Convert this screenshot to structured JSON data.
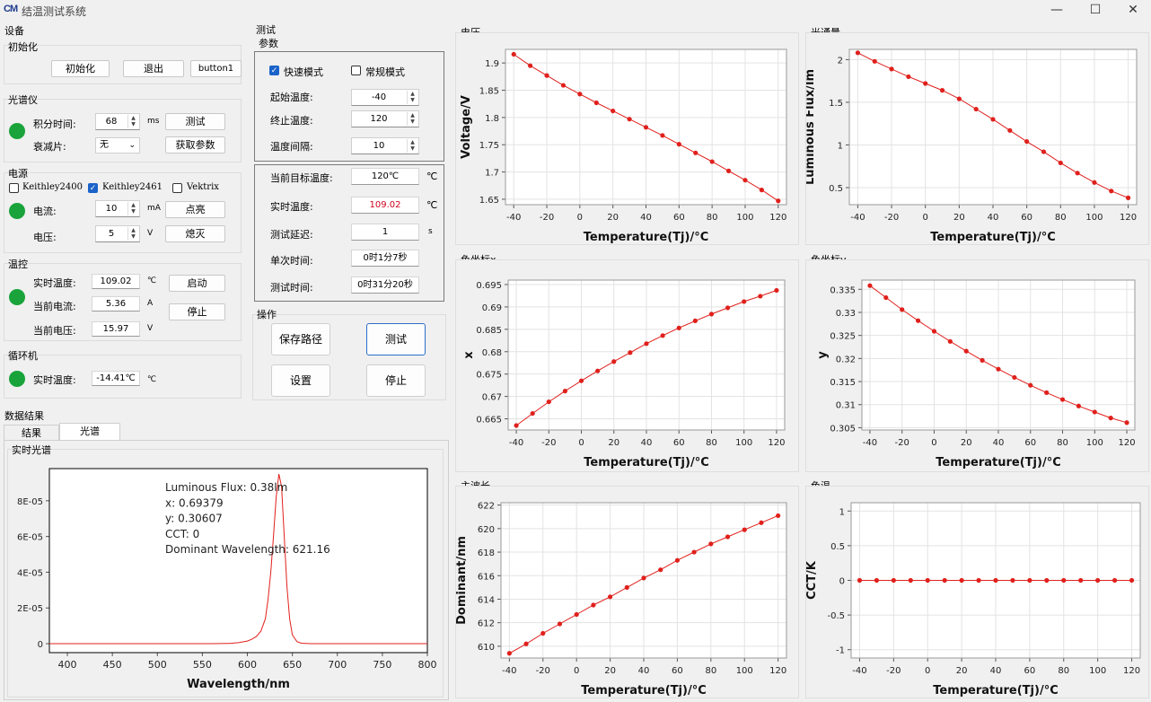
{
  "window": {
    "title": "结温测试系统",
    "logo": "CM",
    "min": "—",
    "max": "☐",
    "close": "✕"
  },
  "device": {
    "title": "设备",
    "init": {
      "title": "初始化",
      "btn_init": "初始化",
      "btn_exit": "退出",
      "btn_b1": "button1"
    },
    "spectro": {
      "title": "光谱仪",
      "int_label": "积分时间:",
      "int_value": "68",
      "int_unit": "ms",
      "btn_test": "测试",
      "att_label": "衰减片:",
      "att_value": "无",
      "btn_params": "获取参数"
    },
    "power": {
      "title": "电源",
      "chk1": "Keithley2400",
      "chk2": "Keithley2461",
      "chk3": "Vektrix",
      "cur_label": "电流:",
      "cur_value": "10",
      "cur_unit": "mA",
      "btn_on": "点亮",
      "volt_label": "电压:",
      "volt_value": "5",
      "volt_unit": "V",
      "btn_off": "熄灭"
    },
    "temp": {
      "title": "温控",
      "rt_label": "实时温度:",
      "rt_value": "109.02",
      "rt_unit": "℃",
      "btn_start": "启动",
      "ic_label": "当前电流:",
      "ic_value": "5.36",
      "ic_unit": "A",
      "btn_stop": "停止",
      "iv_label": "当前电压:",
      "iv_value": "15.97",
      "iv_unit": "V"
    },
    "circ": {
      "title": "循环机",
      "rt_label": "实时温度:",
      "rt_value": "-14.41℃",
      "rt_unit": "℃"
    }
  },
  "test": {
    "title": "测试",
    "params": {
      "title": "参数",
      "fast": "快速模式",
      "normal": "常规模式",
      "start_label": "起始温度:",
      "start_value": "-40",
      "end_label": "终止温度:",
      "end_value": "120",
      "step_label": "温度间隔:",
      "step_value": "10"
    },
    "status": {
      "target_label": "当前目标温度:",
      "target_value": "120℃",
      "target_unit": "℃",
      "real_label": "实时温度:",
      "real_value": "109.02",
      "real_unit": "℃",
      "delay_label": "测试延迟:",
      "delay_value": "1",
      "delay_unit": "s",
      "single_label": "单次时间:",
      "single_value": "0时1分7秒",
      "total_label": "测试时间:",
      "total_value": "0时31分20秒"
    },
    "ops": {
      "title": "操作",
      "btn_path": "保存路径",
      "btn_test": "测试",
      "btn_settings": "设置",
      "btn_stop": "停止"
    }
  },
  "results": {
    "title": "数据结果",
    "tab1": "结果",
    "tab2": "光谱",
    "spectrum_title": "实时光谱"
  },
  "colors": {
    "line": "#e0201c",
    "ok": "#19a33a",
    "accent": "#1a63c9",
    "red_text": "#d0021b"
  },
  "chart_data": [
    {
      "id": "spectrum",
      "type": "line",
      "title": "实时光谱",
      "xlabel": "Wavelength/nm",
      "ylabel": "",
      "xlim": [
        380,
        800
      ],
      "ylim": [
        -5e-06,
        9.8e-05
      ],
      "xticks": [
        400,
        450,
        500,
        550,
        600,
        650,
        700,
        750,
        800
      ],
      "yticks": [
        0,
        2e-05,
        4e-05,
        6e-05,
        8e-05
      ],
      "yticklabels": [
        "0",
        "2E-05",
        "4E-05",
        "6E-05",
        "8E-05"
      ],
      "x": [
        380,
        560,
        580,
        590,
        600,
        605,
        610,
        615,
        620,
        623,
        626,
        629,
        632,
        635,
        638,
        641,
        644,
        647,
        650,
        655,
        660,
        670,
        800
      ],
      "y": [
        0,
        0,
        2e-07,
        6e-07,
        1.5e-06,
        2.5e-06,
        4e-06,
        7e-06,
        1.4e-05,
        2.5e-05,
        4e-05,
        6e-05,
        8.2e-05,
        9.5e-05,
        8.8e-05,
        6e-05,
        3.2e-05,
        1.4e-05,
        5e-06,
        1.2e-06,
        3e-07,
        0,
        0
      ],
      "annotations": [
        "Luminous Flux: 0.38lm",
        "x: 0.69379",
        "y: 0.30607",
        "CCT: 0",
        "Dominant Wavelength: 621.16"
      ]
    },
    {
      "id": "voltage",
      "type": "line",
      "title": "电压",
      "xlabel": "Temperature(Tj)/°C",
      "ylabel": "Voltage/V",
      "xlim": [
        -45,
        125
      ],
      "ylim": [
        1.64,
        1.925
      ],
      "xticks": [
        -40,
        -20,
        0,
        20,
        40,
        60,
        80,
        100,
        120
      ],
      "yticks": [
        1.65,
        1.7,
        1.75,
        1.8,
        1.85,
        1.9
      ],
      "yticklabels": [
        "1.65",
        "1.7",
        "1.75",
        "1.8",
        "1.85",
        "1.9"
      ],
      "x": [
        -40,
        -30,
        -20,
        -10,
        0,
        10,
        20,
        30,
        40,
        50,
        60,
        70,
        80,
        90,
        100,
        110,
        120
      ],
      "y": [
        1.916,
        1.895,
        1.877,
        1.859,
        1.843,
        1.827,
        1.812,
        1.797,
        1.782,
        1.767,
        1.751,
        1.735,
        1.719,
        1.702,
        1.685,
        1.667,
        1.647
      ]
    },
    {
      "id": "flux",
      "type": "line",
      "title": "光通量",
      "xlabel": "Temperature(Tj)/°C",
      "ylabel": "Luminous Flux/lm",
      "xlim": [
        -45,
        125
      ],
      "ylim": [
        0.3,
        2.12
      ],
      "xticks": [
        -40,
        -20,
        0,
        20,
        40,
        60,
        80,
        100,
        120
      ],
      "yticks": [
        0.5,
        1,
        1.5,
        2
      ],
      "yticklabels": [
        "0.5",
        "1",
        "1.5",
        "2"
      ],
      "x": [
        -40,
        -30,
        -20,
        -10,
        0,
        10,
        20,
        30,
        40,
        50,
        60,
        70,
        80,
        90,
        100,
        110,
        120
      ],
      "y": [
        2.08,
        1.98,
        1.89,
        1.8,
        1.72,
        1.64,
        1.54,
        1.42,
        1.3,
        1.17,
        1.04,
        0.92,
        0.79,
        0.67,
        0.56,
        0.46,
        0.38
      ]
    },
    {
      "id": "cx",
      "type": "line",
      "title": "色坐标x",
      "xlabel": "Temperature(Tj)/°C",
      "ylabel": "x",
      "xlim": [
        -45,
        125
      ],
      "ylim": [
        0.6625,
        0.696
      ],
      "xticks": [
        -40,
        -20,
        0,
        20,
        40,
        60,
        80,
        100,
        120
      ],
      "yticks": [
        0.665,
        0.67,
        0.675,
        0.68,
        0.685,
        0.69,
        0.695
      ],
      "yticklabels": [
        "0.665",
        "0.67",
        "0.675",
        "0.68",
        "0.685",
        "0.69",
        "0.695"
      ],
      "x": [
        -40,
        -30,
        -20,
        -10,
        0,
        10,
        20,
        30,
        40,
        50,
        60,
        70,
        80,
        90,
        100,
        110,
        120
      ],
      "y": [
        0.6635,
        0.6662,
        0.6688,
        0.6712,
        0.6735,
        0.6757,
        0.6778,
        0.6798,
        0.6818,
        0.6836,
        0.6853,
        0.6869,
        0.6884,
        0.6898,
        0.6912,
        0.6924,
        0.6937
      ]
    },
    {
      "id": "cy",
      "type": "line",
      "title": "色坐标y",
      "xlabel": "Temperature(Tj)/°C",
      "ylabel": "y",
      "xlim": [
        -45,
        125
      ],
      "ylim": [
        0.3045,
        0.337
      ],
      "xticks": [
        -40,
        -20,
        0,
        20,
        40,
        60,
        80,
        100,
        120
      ],
      "yticks": [
        0.305,
        0.31,
        0.315,
        0.32,
        0.325,
        0.33,
        0.335
      ],
      "yticklabels": [
        "0.305",
        "0.31",
        "0.315",
        "0.32",
        "0.325",
        "0.33",
        "0.335"
      ],
      "x": [
        -40,
        -30,
        -20,
        -10,
        0,
        10,
        20,
        30,
        40,
        50,
        60,
        70,
        80,
        90,
        100,
        110,
        120
      ],
      "y": [
        0.3358,
        0.3332,
        0.3306,
        0.3282,
        0.3259,
        0.3237,
        0.3216,
        0.3196,
        0.3177,
        0.3159,
        0.3142,
        0.3126,
        0.3111,
        0.3097,
        0.3084,
        0.3071,
        0.3061
      ]
    },
    {
      "id": "domwl",
      "type": "line",
      "title": "主波长",
      "xlabel": "Temperature(Tj)/°C",
      "ylabel": "Dominant/nm",
      "xlim": [
        -45,
        125
      ],
      "ylim": [
        609,
        622.2
      ],
      "xticks": [
        -40,
        -20,
        0,
        20,
        40,
        60,
        80,
        100,
        120
      ],
      "yticks": [
        610,
        612,
        614,
        616,
        618,
        620,
        622
      ],
      "yticklabels": [
        "610",
        "612",
        "614",
        "616",
        "618",
        "620",
        "622"
      ],
      "x": [
        -40,
        -30,
        -20,
        -10,
        0,
        10,
        20,
        30,
        40,
        50,
        60,
        70,
        80,
        90,
        100,
        110,
        120
      ],
      "y": [
        609.4,
        610.2,
        611.1,
        611.9,
        612.7,
        613.5,
        614.2,
        615,
        615.8,
        616.5,
        617.3,
        618,
        618.7,
        619.3,
        619.9,
        620.5,
        621.1
      ]
    },
    {
      "id": "cct",
      "type": "line",
      "title": "色温",
      "xlabel": "Temperature(Tj)/°C",
      "ylabel": "CCT/K",
      "xlim": [
        -45,
        125
      ],
      "ylim": [
        -1.12,
        1.12
      ],
      "xticks": [
        -40,
        -20,
        0,
        20,
        40,
        60,
        80,
        100,
        120
      ],
      "yticks": [
        -1,
        -0.5,
        0,
        0.5,
        1
      ],
      "yticklabels": [
        "-1",
        "-0.5",
        "0",
        "0.5",
        "1"
      ],
      "x": [
        -40,
        -30,
        -20,
        -10,
        0,
        10,
        20,
        30,
        40,
        50,
        60,
        70,
        80,
        90,
        100,
        110,
        120
      ],
      "y": [
        0,
        0,
        0,
        0,
        0,
        0,
        0,
        0,
        0,
        0,
        0,
        0,
        0,
        0,
        0,
        0,
        0
      ]
    }
  ]
}
